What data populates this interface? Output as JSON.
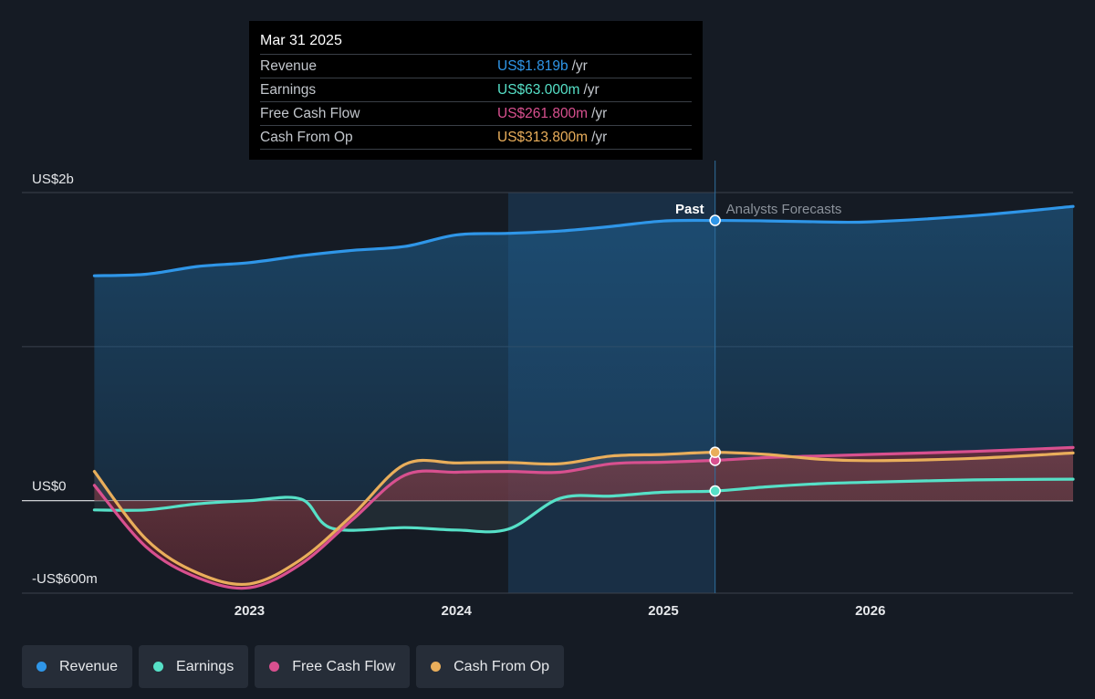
{
  "tooltip": {
    "date": "Mar 31 2025",
    "rows": [
      {
        "label": "Revenue",
        "value": "US$1.819b",
        "unit": "/yr",
        "color": "#2f96e8"
      },
      {
        "label": "Earnings",
        "value": "US$63.000m",
        "unit": "/yr",
        "color": "#56e0c7"
      },
      {
        "label": "Free Cash Flow",
        "value": "US$261.800m",
        "unit": "/yr",
        "color": "#d8508f"
      },
      {
        "label": "Cash From Op",
        "value": "US$313.800m",
        "unit": "/yr",
        "color": "#e9ae5b"
      }
    ]
  },
  "labels": {
    "past": "Past",
    "forecast": "Analysts Forecasts"
  },
  "legend": [
    {
      "label": "Revenue",
      "color": "#2f96e8"
    },
    {
      "label": "Earnings",
      "color": "#56e0c7"
    },
    {
      "label": "Free Cash Flow",
      "color": "#d8508f"
    },
    {
      "label": "Cash From Op",
      "color": "#e9ae5b"
    }
  ],
  "chart_data": {
    "type": "line",
    "y_unit": "US$ millions",
    "ylim": [
      -600,
      2000
    ],
    "y_ticks": [
      {
        "value": 2000,
        "label": "US$2b"
      },
      {
        "value": 0,
        "label": "US$0"
      },
      {
        "value": -600,
        "label": "-US$600m"
      }
    ],
    "x_ticks": [
      {
        "value": 2023,
        "label": "2023"
      },
      {
        "value": 2024,
        "label": "2024"
      },
      {
        "value": 2025,
        "label": "2025"
      },
      {
        "value": 2026,
        "label": "2026"
      }
    ],
    "xlim": [
      2021.9,
      2026.98
    ],
    "past_end": 2025.25,
    "highlight_start": 2024.25,
    "grid": true,
    "series": [
      {
        "name": "Revenue",
        "color": "#2f96e8",
        "points": [
          [
            2022.25,
            1460
          ],
          [
            2022.5,
            1470
          ],
          [
            2022.75,
            1520
          ],
          [
            2023,
            1545
          ],
          [
            2023.25,
            1590
          ],
          [
            2023.5,
            1625
          ],
          [
            2023.75,
            1650
          ],
          [
            2024,
            1725
          ],
          [
            2024.25,
            1735
          ],
          [
            2024.5,
            1750
          ],
          [
            2024.75,
            1780
          ],
          [
            2025,
            1815
          ],
          [
            2025.25,
            1819
          ],
          [
            2025.5,
            1816
          ],
          [
            2025.75,
            1810
          ],
          [
            2026,
            1810
          ],
          [
            2026.5,
            1850
          ],
          [
            2026.98,
            1910
          ]
        ]
      },
      {
        "name": "Earnings",
        "color": "#56e0c7",
        "points": [
          [
            2022.25,
            -60
          ],
          [
            2022.5,
            -60
          ],
          [
            2022.75,
            -20
          ],
          [
            2023,
            0
          ],
          [
            2023.25,
            10
          ],
          [
            2023.4,
            -180
          ],
          [
            2023.75,
            -175
          ],
          [
            2024,
            -190
          ],
          [
            2024.25,
            -185
          ],
          [
            2024.5,
            15
          ],
          [
            2024.75,
            30
          ],
          [
            2025,
            55
          ],
          [
            2025.25,
            63
          ],
          [
            2025.5,
            90
          ],
          [
            2025.75,
            110
          ],
          [
            2026,
            120
          ],
          [
            2026.5,
            135
          ],
          [
            2026.98,
            140
          ]
        ]
      },
      {
        "name": "Free Cash Flow",
        "color": "#d8508f",
        "points": [
          [
            2022.25,
            100
          ],
          [
            2022.5,
            -300
          ],
          [
            2022.75,
            -500
          ],
          [
            2023,
            -565
          ],
          [
            2023.25,
            -410
          ],
          [
            2023.5,
            -120
          ],
          [
            2023.75,
            165
          ],
          [
            2024,
            185
          ],
          [
            2024.25,
            190
          ],
          [
            2024.5,
            185
          ],
          [
            2024.75,
            240
          ],
          [
            2025,
            250
          ],
          [
            2025.25,
            262
          ],
          [
            2025.5,
            280
          ],
          [
            2025.75,
            290
          ],
          [
            2026,
            300
          ],
          [
            2026.5,
            320
          ],
          [
            2026.98,
            345
          ]
        ]
      },
      {
        "name": "Cash From Op",
        "color": "#e9ae5b",
        "points": [
          [
            2022.25,
            190
          ],
          [
            2022.5,
            -250
          ],
          [
            2022.75,
            -470
          ],
          [
            2023,
            -540
          ],
          [
            2023.25,
            -380
          ],
          [
            2023.5,
            -90
          ],
          [
            2023.75,
            235
          ],
          [
            2024,
            245
          ],
          [
            2024.25,
            248
          ],
          [
            2024.5,
            240
          ],
          [
            2024.75,
            290
          ],
          [
            2025,
            300
          ],
          [
            2025.25,
            314
          ],
          [
            2025.5,
            300
          ],
          [
            2025.75,
            270
          ],
          [
            2026,
            260
          ],
          [
            2026.5,
            275
          ],
          [
            2026.98,
            310
          ]
        ]
      }
    ]
  }
}
